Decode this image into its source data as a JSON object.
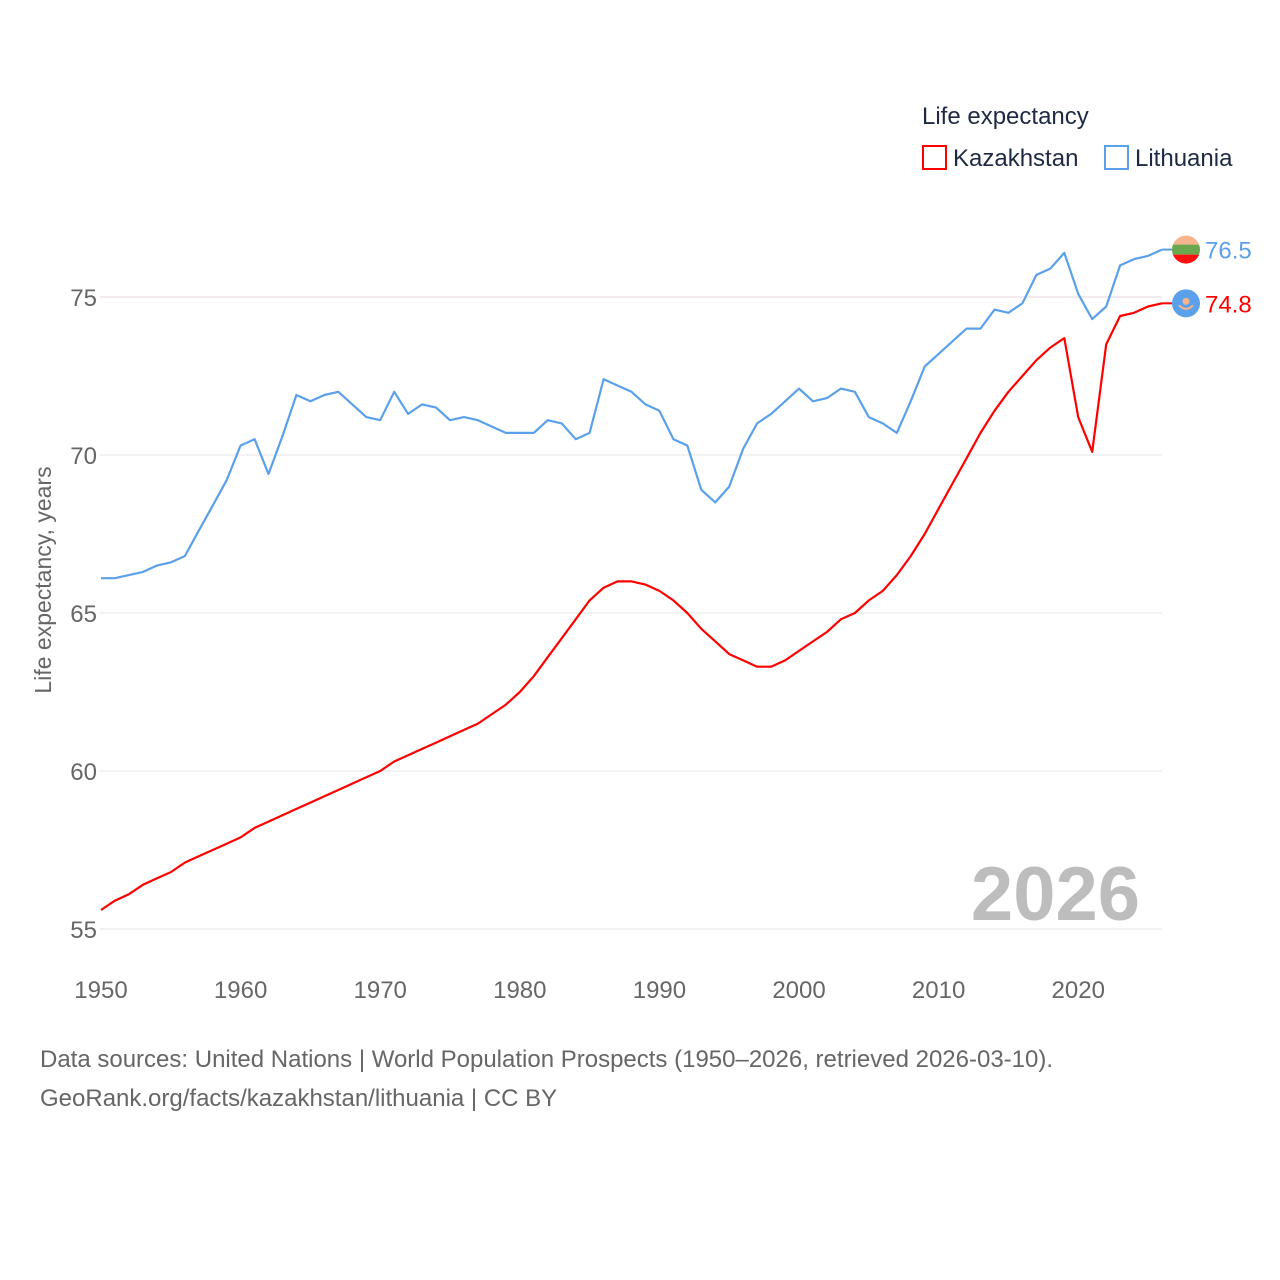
{
  "chart_data": {
    "type": "line",
    "title": "",
    "legend_title": "Life expectancy",
    "legend_position": "top-right",
    "xlabel": "",
    "ylabel": "Life expectancy, years",
    "xlim": [
      1950,
      2026
    ],
    "ylim": [
      55,
      77
    ],
    "x_ticks": [
      "1950",
      "1960",
      "1970",
      "1980",
      "1990",
      "2000",
      "2010",
      "2020"
    ],
    "y_ticks": [
      "55",
      "60",
      "65",
      "70",
      "75"
    ],
    "grid": true,
    "year_label": "2026",
    "x_start": 1950,
    "series": [
      {
        "name": "Kazakhstan",
        "color": "#ff0000",
        "end_label": "74.8",
        "values": [
          55.6,
          55.9,
          56.1,
          56.4,
          56.6,
          56.8,
          57.1,
          57.3,
          57.5,
          57.7,
          57.9,
          58.2,
          58.4,
          58.6,
          58.8,
          59.0,
          59.2,
          59.4,
          59.6,
          59.8,
          60.0,
          60.3,
          60.5,
          60.7,
          60.9,
          61.1,
          61.3,
          61.5,
          61.8,
          62.1,
          62.5,
          63.0,
          63.6,
          64.2,
          64.8,
          65.4,
          65.8,
          66.0,
          66.0,
          65.9,
          65.7,
          65.4,
          65.0,
          64.5,
          64.1,
          63.7,
          63.5,
          63.3,
          63.3,
          63.5,
          63.8,
          64.1,
          64.4,
          64.8,
          65.0,
          65.4,
          65.7,
          66.2,
          66.8,
          67.5,
          68.3,
          69.1,
          69.9,
          70.7,
          71.4,
          72.0,
          72.5,
          73.0,
          73.4,
          73.7,
          71.2,
          70.1,
          73.5,
          74.4,
          74.5,
          74.7,
          74.8
        ]
      },
      {
        "name": "Lithuania",
        "color": "#5aa0eb",
        "end_label": "76.5",
        "values": [
          66.1,
          66.1,
          66.2,
          66.3,
          66.5,
          66.6,
          66.8,
          67.6,
          68.4,
          69.2,
          70.3,
          70.5,
          69.4,
          70.6,
          71.9,
          71.7,
          71.9,
          72.0,
          71.6,
          71.2,
          71.1,
          72.0,
          71.3,
          71.6,
          71.5,
          71.1,
          71.2,
          71.1,
          70.9,
          70.7,
          70.7,
          70.7,
          71.1,
          71.0,
          70.5,
          70.7,
          72.4,
          72.2,
          72.0,
          71.6,
          71.4,
          70.5,
          70.3,
          68.9,
          68.5,
          69.0,
          70.2,
          71.0,
          71.3,
          71.7,
          72.1,
          71.7,
          71.8,
          72.1,
          72.0,
          71.2,
          71.0,
          70.7,
          71.7,
          72.8,
          73.2,
          73.6,
          74.0,
          74.0,
          74.6,
          74.5,
          74.8,
          75.7,
          75.9,
          76.4,
          75.1,
          74.3,
          74.7,
          76.0,
          76.2,
          76.3,
          76.5
        ]
      }
    ]
  },
  "sources": {
    "line1": "Data sources: United Nations | World Population Prospects (1950–2026, retrieved 2026-03-10).",
    "line2": "GeoRank.org/facts/kazakhstan/lithuania | CC BY"
  }
}
